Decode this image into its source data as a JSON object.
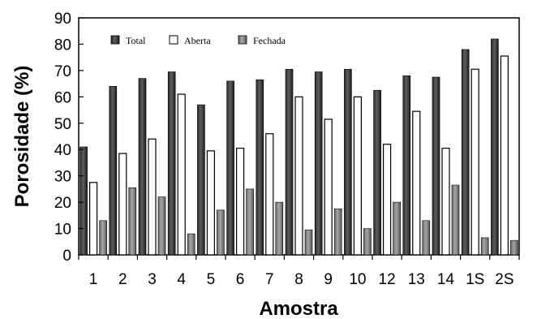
{
  "chart_data": {
    "type": "bar",
    "xlabel": "Amostra",
    "ylabel": "Porosidade (%)",
    "ylim": [
      0,
      90
    ],
    "yticks": [
      0,
      10,
      20,
      30,
      40,
      50,
      60,
      70,
      80,
      90
    ],
    "grid": false,
    "legend_position": "top-left",
    "categories": [
      "1",
      "2",
      "3",
      "4",
      "5",
      "6",
      "7",
      "8",
      "9",
      "10",
      "12",
      "13",
      "14",
      "1S",
      "2S"
    ],
    "series": [
      {
        "name": "Total",
        "color": "#4a4a4a",
        "values": [
          41,
          64,
          67,
          69.5,
          57,
          66,
          66.5,
          70.5,
          69.5,
          70.5,
          62.5,
          68,
          67.5,
          78,
          82
        ]
      },
      {
        "name": "Aberta",
        "color": "#ffffff",
        "values": [
          27.5,
          38.5,
          44,
          61,
          39.5,
          40.5,
          46,
          60,
          51.5,
          60,
          42,
          54.5,
          40.5,
          70.5,
          75.5
        ]
      },
      {
        "name": "Fechada",
        "color": "#8c8c8c",
        "values": [
          13,
          25.5,
          22,
          8,
          17,
          25,
          20,
          9.5,
          17.5,
          10,
          20,
          13,
          26.5,
          6.5,
          5.5
        ]
      }
    ]
  }
}
